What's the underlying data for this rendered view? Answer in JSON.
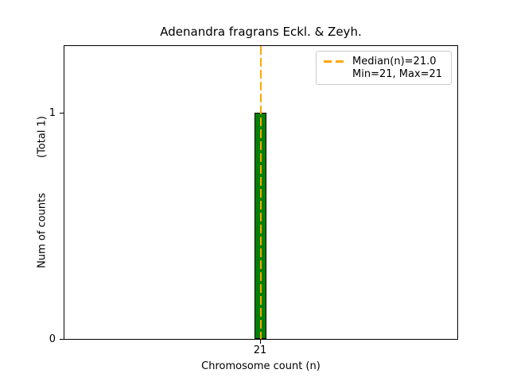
{
  "chart_data": {
    "type": "bar",
    "title": "Adenandra fragrans Eckl. & Zeyh.",
    "xlabel": "Chromosome count (n)",
    "ylabel": "Num of counts",
    "ylabel_total": "(Total 1)",
    "categories": [
      "21"
    ],
    "values": [
      1
    ],
    "x_tick_labels": [
      "21"
    ],
    "y_tick_labels": [
      "0",
      "1"
    ],
    "ylim": [
      0,
      1.3
    ],
    "median": 21.0,
    "min": 21,
    "max": 21,
    "grid": false,
    "legend": {
      "position": "upper right",
      "entries": [
        {
          "label": "Median(n)=21.0",
          "marker": "orange-dashed-line"
        },
        {
          "label": "Min=21, Max=21",
          "marker": "none"
        }
      ]
    },
    "colors": {
      "bar_fill": "#008000",
      "bar_edge": "#000000",
      "median_line": "#FFA500",
      "axes": "#000000",
      "background": "#FFFFFF"
    }
  }
}
